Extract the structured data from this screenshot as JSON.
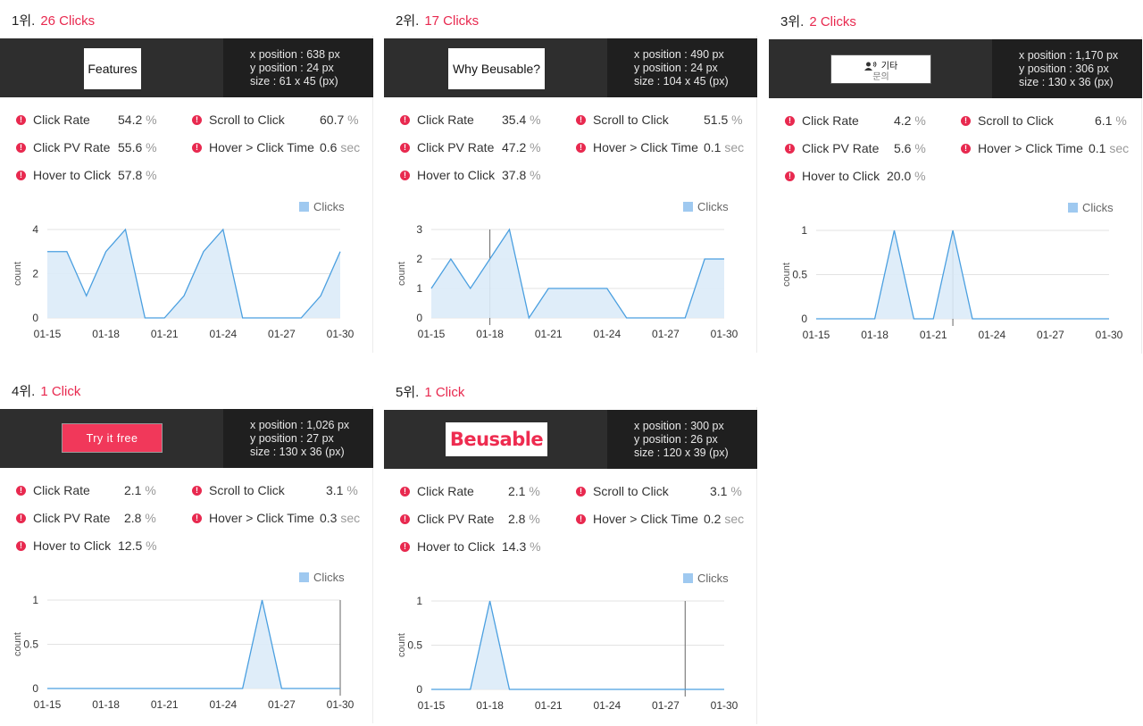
{
  "cards": [
    {
      "rank": "1위.",
      "clicks": "26 Clicks",
      "thumb": "Features",
      "x_line": "x position : 638 px",
      "y_line": "y position : 24 px",
      "size_line": "size : 61 x 45 (px)",
      "metrics": {
        "click_rate": {
          "label": "Click Rate",
          "value": "54.2",
          "unit": "%"
        },
        "scroll_to_click": {
          "label": "Scroll to Click",
          "value": "60.7",
          "unit": "%"
        },
        "click_pv_rate": {
          "label": "Click PV Rate",
          "value": "55.6",
          "unit": "%"
        },
        "hover_click_time": {
          "label": "Hover > Click Time",
          "value": "0.6",
          "unit": "sec"
        },
        "hover_to_click": {
          "label": "Hover to Click",
          "value": "57.8",
          "unit": "%"
        }
      }
    },
    {
      "rank": "2위.",
      "clicks": "17 Clicks",
      "thumb": "Why Beusable?",
      "x_line": "x position : 490 px",
      "y_line": "y position : 24 px",
      "size_line": "size : 104 x 45 (px)",
      "metrics": {
        "click_rate": {
          "label": "Click Rate",
          "value": "35.4",
          "unit": "%"
        },
        "scroll_to_click": {
          "label": "Scroll to Click",
          "value": "51.5",
          "unit": "%"
        },
        "click_pv_rate": {
          "label": "Click PV Rate",
          "value": "47.2",
          "unit": "%"
        },
        "hover_click_time": {
          "label": "Hover > Click Time",
          "value": "0.1",
          "unit": "sec"
        },
        "hover_to_click": {
          "label": "Hover to Click",
          "value": "37.8",
          "unit": "%"
        }
      }
    },
    {
      "rank": "3위.",
      "clicks": "2 Clicks",
      "thumb": "기타",
      "thumb_sub": "문의",
      "x_line": "x position : 1,170 px",
      "y_line": "y position : 306 px",
      "size_line": "size : 130 x 36 (px)",
      "metrics": {
        "click_rate": {
          "label": "Click Rate",
          "value": "4.2",
          "unit": "%"
        },
        "scroll_to_click": {
          "label": "Scroll to Click",
          "value": "6.1",
          "unit": "%"
        },
        "click_pv_rate": {
          "label": "Click PV Rate",
          "value": "5.6",
          "unit": "%"
        },
        "hover_click_time": {
          "label": "Hover > Click Time",
          "value": "0.1",
          "unit": "sec"
        },
        "hover_to_click": {
          "label": "Hover to Click",
          "value": "20.0",
          "unit": "%"
        }
      }
    },
    {
      "rank": "4위.",
      "clicks": "1 Click",
      "thumb": "Try it free",
      "x_line": "x position : 1,026 px",
      "y_line": "y position : 27 px",
      "size_line": "size : 130 x 36 (px)",
      "metrics": {
        "click_rate": {
          "label": "Click Rate",
          "value": "2.1",
          "unit": "%"
        },
        "scroll_to_click": {
          "label": "Scroll to Click",
          "value": "3.1",
          "unit": "%"
        },
        "click_pv_rate": {
          "label": "Click PV Rate",
          "value": "2.8",
          "unit": "%"
        },
        "hover_click_time": {
          "label": "Hover > Click Time",
          "value": "0.3",
          "unit": "sec"
        },
        "hover_to_click": {
          "label": "Hover to Click",
          "value": "12.5",
          "unit": "%"
        }
      }
    },
    {
      "rank": "5위.",
      "clicks": "1 Click",
      "thumb": "Beusable",
      "x_line": "x position : 300 px",
      "y_line": "y position : 26 px",
      "size_line": "size : 120 x 39 (px)",
      "metrics": {
        "click_rate": {
          "label": "Click Rate",
          "value": "2.1",
          "unit": "%"
        },
        "scroll_to_click": {
          "label": "Scroll to Click",
          "value": "3.1",
          "unit": "%"
        },
        "click_pv_rate": {
          "label": "Click PV Rate",
          "value": "2.8",
          "unit": "%"
        },
        "hover_click_time": {
          "label": "Hover > Click Time",
          "value": "0.2",
          "unit": "sec"
        },
        "hover_to_click": {
          "label": "Hover to Click",
          "value": "14.3",
          "unit": "%"
        }
      }
    }
  ],
  "colors": {
    "accent": "#e8294f",
    "band": "#2e2e2e",
    "band_info": "#1f1f1f",
    "line": "#4a9fe0",
    "fill": "#dcebf8",
    "legend": "#9fc9f0"
  },
  "icons": {
    "metric": "info-dot-icon",
    "thumb3": "person-voice-icon"
  },
  "chart_data": [
    {
      "type": "area",
      "legend": "Clicks",
      "ylabel": "count",
      "x": [
        "01-15",
        "01-16",
        "01-17",
        "01-18",
        "01-19",
        "01-20",
        "01-21",
        "01-22",
        "01-23",
        "01-24",
        "01-25",
        "01-26",
        "01-27",
        "01-28",
        "01-29",
        "01-30"
      ],
      "xticks": [
        "01-15",
        "01-18",
        "01-21",
        "01-24",
        "01-27",
        "01-30"
      ],
      "yticks": [
        "0",
        "2",
        "4"
      ],
      "ylim": [
        0,
        4
      ],
      "values": [
        3,
        3,
        1,
        3,
        4,
        0,
        0,
        1,
        3,
        4,
        0,
        0,
        0,
        0,
        1,
        3
      ]
    },
    {
      "type": "area",
      "legend": "Clicks",
      "ylabel": "count",
      "x": [
        "01-15",
        "01-16",
        "01-17",
        "01-18",
        "01-19",
        "01-20",
        "01-21",
        "01-22",
        "01-23",
        "01-24",
        "01-25",
        "01-26",
        "01-27",
        "01-28",
        "01-29",
        "01-30"
      ],
      "xticks": [
        "01-15",
        "01-18",
        "01-21",
        "01-24",
        "01-27",
        "01-30"
      ],
      "yticks": [
        "0",
        "1",
        "2",
        "3"
      ],
      "ylim": [
        0,
        3
      ],
      "values": [
        1,
        2,
        1,
        2,
        3,
        0,
        1,
        1,
        1,
        1,
        0,
        0,
        0,
        0,
        2,
        2
      ],
      "marker_x": "01-18"
    },
    {
      "type": "area",
      "legend": "Clicks",
      "ylabel": "count",
      "x": [
        "01-15",
        "01-16",
        "01-17",
        "01-18",
        "01-19",
        "01-20",
        "01-21",
        "01-22",
        "01-23",
        "01-24",
        "01-25",
        "01-26",
        "01-27",
        "01-28",
        "01-29",
        "01-30"
      ],
      "xticks": [
        "01-15",
        "01-18",
        "01-21",
        "01-24",
        "01-27",
        "01-30"
      ],
      "yticks": [
        "0",
        "0.5",
        "1"
      ],
      "ylim": [
        0,
        1
      ],
      "values": [
        0,
        0,
        0,
        0,
        1,
        0,
        0,
        1,
        0,
        0,
        0,
        0,
        0,
        0,
        0,
        0
      ],
      "marker_x": "01-22"
    },
    {
      "type": "area",
      "legend": "Clicks",
      "ylabel": "count",
      "x": [
        "01-15",
        "01-16",
        "01-17",
        "01-18",
        "01-19",
        "01-20",
        "01-21",
        "01-22",
        "01-23",
        "01-24",
        "01-25",
        "01-26",
        "01-27",
        "01-28",
        "01-29",
        "01-30"
      ],
      "xticks": [
        "01-15",
        "01-18",
        "01-21",
        "01-24",
        "01-27",
        "01-30"
      ],
      "yticks": [
        "0",
        "0.5",
        "1"
      ],
      "ylim": [
        0,
        1
      ],
      "values": [
        0,
        0,
        0,
        0,
        0,
        0,
        0,
        0,
        0,
        0,
        0,
        1,
        0,
        0,
        0,
        0
      ],
      "marker_x": "01-30"
    },
    {
      "type": "area",
      "legend": "Clicks",
      "ylabel": "count",
      "x": [
        "01-15",
        "01-16",
        "01-17",
        "01-18",
        "01-19",
        "01-20",
        "01-21",
        "01-22",
        "01-23",
        "01-24",
        "01-25",
        "01-26",
        "01-27",
        "01-28",
        "01-29",
        "01-30"
      ],
      "xticks": [
        "01-15",
        "01-18",
        "01-21",
        "01-24",
        "01-27",
        "01-30"
      ],
      "yticks": [
        "0",
        "0.5",
        "1"
      ],
      "ylim": [
        0,
        1
      ],
      "values": [
        0,
        0,
        0,
        1,
        0,
        0,
        0,
        0,
        0,
        0,
        0,
        0,
        0,
        0,
        0,
        0
      ],
      "marker_x": "01-28"
    }
  ]
}
